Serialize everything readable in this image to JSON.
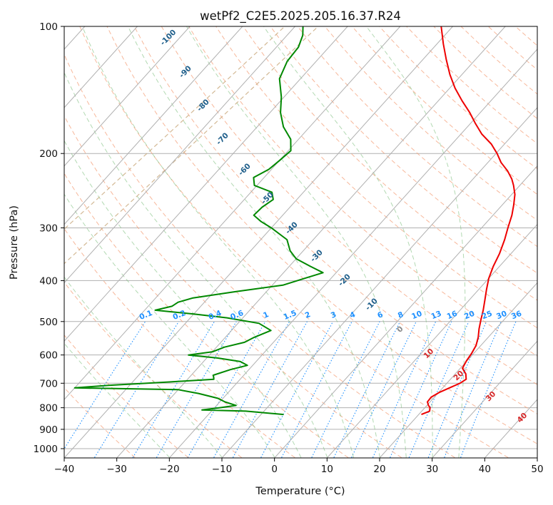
{
  "chart_data": {
    "type": "line",
    "chart_kind": "skew-t log-p",
    "title": "wetPf2_C2E5.2025.205.16.37.R24",
    "xlabel": "Temperature (°C)",
    "ylabel": "Pressure (hPa)",
    "xlim": [
      -40,
      50
    ],
    "ylim": [
      1050,
      100
    ],
    "y_scale": "log",
    "x_ticks": [
      -40,
      -30,
      -20,
      -10,
      0,
      10,
      20,
      30,
      40,
      50
    ],
    "x_tick_labels": [
      "−40",
      "−30",
      "−20",
      "−10",
      "0",
      "10",
      "20",
      "30",
      "40",
      "50"
    ],
    "y_ticks": [
      100,
      200,
      300,
      400,
      500,
      600,
      700,
      800,
      900,
      1000
    ],
    "y_tick_labels": [
      "100",
      "200",
      "300",
      "400",
      "500",
      "600",
      "700",
      "800",
      "900",
      "1000"
    ],
    "grid": true,
    "series": [
      {
        "role": "temperature",
        "color": "#ee0000",
        "points": [
          [
            830,
            20.5
          ],
          [
            815,
            21.5
          ],
          [
            800,
            21.0
          ],
          [
            790,
            20.3
          ],
          [
            775,
            19.5
          ],
          [
            755,
            19.4
          ],
          [
            735,
            20.2
          ],
          [
            715,
            21.5
          ],
          [
            700,
            22.5
          ],
          [
            685,
            23.0
          ],
          [
            665,
            22.0
          ],
          [
            645,
            20.4
          ],
          [
            620,
            19.9
          ],
          [
            595,
            19.6
          ],
          [
            570,
            19.1
          ],
          [
            545,
            18.1
          ],
          [
            520,
            16.8
          ],
          [
            495,
            15.6
          ],
          [
            470,
            14.4
          ],
          [
            445,
            13.0
          ],
          [
            420,
            11.5
          ],
          [
            395,
            10.0
          ],
          [
            370,
            8.8
          ],
          [
            345,
            7.8
          ],
          [
            320,
            6.4
          ],
          [
            300,
            5.0
          ],
          [
            280,
            3.6
          ],
          [
            265,
            2.2
          ],
          [
            250,
            0.6
          ],
          [
            238,
            -1.2
          ],
          [
            230,
            -2.6
          ],
          [
            220,
            -4.8
          ],
          [
            210,
            -7.5
          ],
          [
            200,
            -9.8
          ],
          [
            190,
            -12.5
          ],
          [
            180,
            -16.0
          ],
          [
            170,
            -19.0
          ],
          [
            160,
            -22.0
          ],
          [
            150,
            -25.5
          ],
          [
            140,
            -29.0
          ],
          [
            130,
            -32.3
          ],
          [
            120,
            -35.5
          ],
          [
            110,
            -38.8
          ],
          [
            100,
            -42.2
          ]
        ]
      },
      {
        "role": "dewpoint",
        "color": "#008800",
        "points": [
          [
            830,
            -5.7
          ],
          [
            815,
            -13.5
          ],
          [
            810,
            -22.0
          ],
          [
            800,
            -19.0
          ],
          [
            790,
            -16.3
          ],
          [
            775,
            -19.0
          ],
          [
            760,
            -21.0
          ],
          [
            740,
            -25.5
          ],
          [
            725,
            -30.0
          ],
          [
            718,
            -50.0
          ],
          [
            708,
            -44.0
          ],
          [
            695,
            -33.0
          ],
          [
            685,
            -25.0
          ],
          [
            670,
            -25.8
          ],
          [
            650,
            -23.5
          ],
          [
            635,
            -21.0
          ],
          [
            622,
            -23.0
          ],
          [
            610,
            -28.0
          ],
          [
            600,
            -34.0
          ],
          [
            590,
            -30.0
          ],
          [
            575,
            -28.5
          ],
          [
            560,
            -25.5
          ],
          [
            545,
            -24.5
          ],
          [
            525,
            -22.5
          ],
          [
            505,
            -26.0
          ],
          [
            490,
            -33.0
          ],
          [
            480,
            -40.0
          ],
          [
            470,
            -48.0
          ],
          [
            460,
            -45.5
          ],
          [
            450,
            -45.0
          ],
          [
            440,
            -43.0
          ],
          [
            425,
            -36.0
          ],
          [
            410,
            -28.0
          ],
          [
            395,
            -25.0
          ],
          [
            383,
            -22.5
          ],
          [
            370,
            -26.0
          ],
          [
            355,
            -30.0
          ],
          [
            340,
            -32.5
          ],
          [
            320,
            -35.0
          ],
          [
            300,
            -40.0
          ],
          [
            290,
            -43.0
          ],
          [
            280,
            -45.5
          ],
          [
            268,
            -45.3
          ],
          [
            257,
            -44.5
          ],
          [
            247,
            -46.0
          ],
          [
            238,
            -50.5
          ],
          [
            228,
            -52.0
          ],
          [
            218,
            -50.5
          ],
          [
            208,
            -50.0
          ],
          [
            197,
            -49.5
          ],
          [
            185,
            -51.5
          ],
          [
            173,
            -55.0
          ],
          [
            160,
            -58.0
          ],
          [
            147,
            -60.5
          ],
          [
            133,
            -64.0
          ],
          [
            121,
            -65.5
          ],
          [
            112,
            -65.8
          ],
          [
            105,
            -67.0
          ],
          [
            100,
            -68.5
          ]
        ]
      }
    ],
    "dry_adiabat_labels": [
      "-100",
      "-90",
      "-80",
      "-70",
      "-60",
      "-50",
      "-40",
      "-30",
      "-20",
      "-10",
      "0",
      "10",
      "20",
      "30",
      "40"
    ],
    "mixing_ratio_labels": [
      "0.1",
      "0.2",
      "0.4",
      "0.6",
      "1",
      "1.5",
      "2",
      "3",
      "4",
      "6",
      "8",
      "10",
      "13",
      "16",
      "20",
      "25",
      "30",
      "36"
    ]
  },
  "colors": {
    "temperature": "#ee0000",
    "dewpoint": "#008800",
    "dry_adiabat_dark_label": "#1f5f8b",
    "dry_adiabat_warm_label": "#d62728",
    "mixing_ratio_label": "#1e90ff",
    "grid": "#b0b0b0"
  }
}
